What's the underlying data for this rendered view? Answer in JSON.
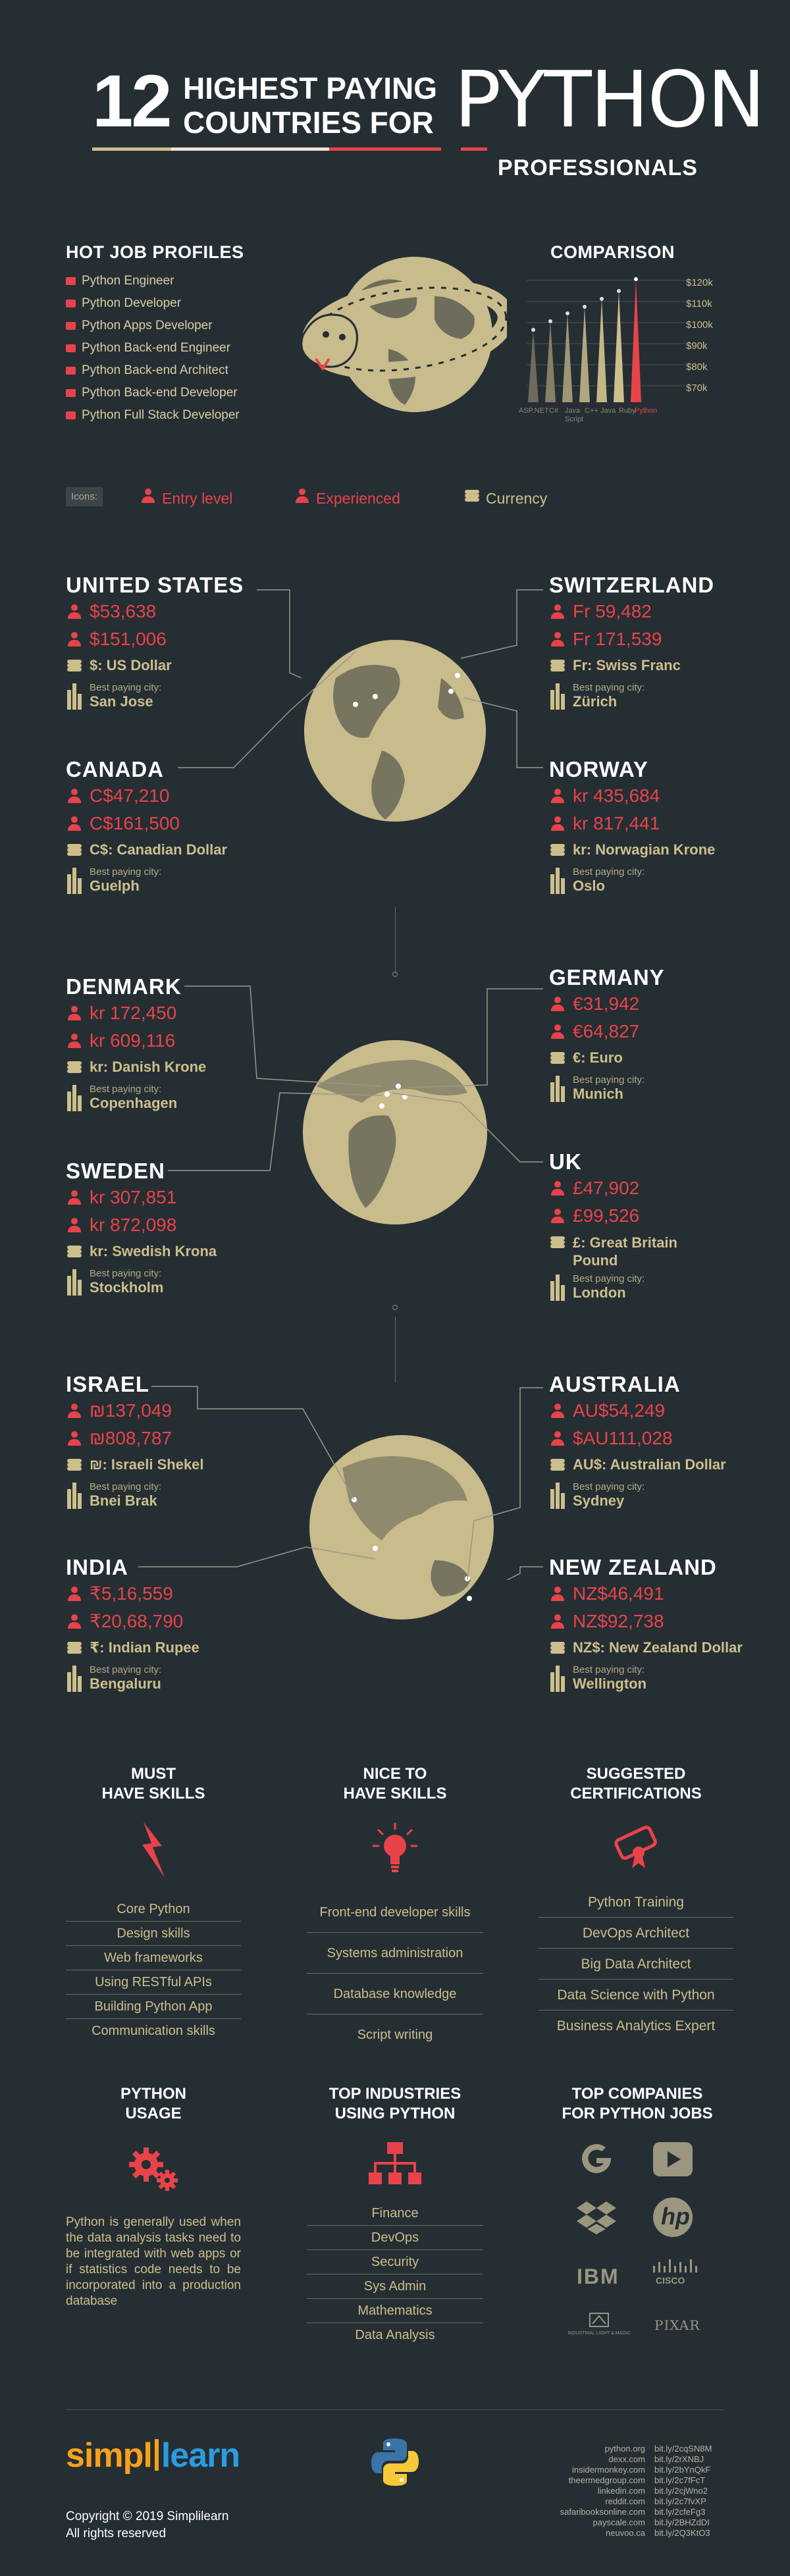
{
  "header": {
    "number": "12",
    "line1": "HIGHEST PAYING",
    "line2": "COUNTRIES FOR",
    "python": "PYTHON",
    "professionals": "PROFESSIONALS"
  },
  "hot_jobs": {
    "title": "HOT JOB PROFILES",
    "items": [
      "Python Engineer",
      "Python Developer",
      "Python Apps Developer",
      "Python Back-end Engineer",
      "Python Back-end Architect",
      "Python Back-end Developer",
      "Python Full Stack Developer"
    ]
  },
  "comparison": {
    "title": "COMPARISON",
    "ticks": [
      "$120k",
      "$110k",
      "$100k",
      "$90k",
      "$80k",
      "$70k"
    ],
    "languages": [
      "ASP.NET",
      "C#",
      "Java Script",
      "C++",
      "Java",
      "Ruby",
      "Python"
    ]
  },
  "icons_legend": {
    "label": "Icons:",
    "entry": "Entry level",
    "experienced": "Experienced",
    "currency": "Currency"
  },
  "best_paying_label": "Best paying city:",
  "countries": {
    "us": {
      "name": "UNITED STATES",
      "entry": "$53,638",
      "exp": "$151,006",
      "currency": "$: US Dollar",
      "city": "San Jose"
    },
    "ca": {
      "name": "CANADA",
      "entry": "C$47,210",
      "exp": "C$161,500",
      "currency": "C$: Canadian Dollar",
      "city": "Guelph"
    },
    "ch": {
      "name": "SWITZERLAND",
      "entry": "Fr 59,482",
      "exp": "Fr 171,539",
      "currency": "Fr: Swiss Franc",
      "city": "Zürich"
    },
    "no": {
      "name": "NORWAY",
      "entry": "kr 435,684",
      "exp": "kr 817,441",
      "currency": "kr: Norwagian Krone",
      "city": "Oslo"
    },
    "dk": {
      "name": "DENMARK",
      "entry": "kr 172,450",
      "exp": "kr 609,116",
      "currency": "kr: Danish Krone",
      "city": "Copenhagen"
    },
    "se": {
      "name": "SWEDEN",
      "entry": "kr 307,851",
      "exp": "kr 872,098",
      "currency": "kr: Swedish Krona",
      "city": "Stockholm"
    },
    "de": {
      "name": "GERMANY",
      "entry": "€31,942",
      "exp": "€64,827",
      "currency": "€: Euro",
      "city": "Munich"
    },
    "uk": {
      "name": "UK",
      "entry": "£47,902",
      "exp": "£99,526",
      "currency": "£: Great Britain Pound",
      "city": "London"
    },
    "il": {
      "name": "ISRAEL",
      "entry": "₪137,049",
      "exp": "₪808,787",
      "currency": "₪: Israeli Shekel",
      "city": "Bnei Brak"
    },
    "in": {
      "name": "INDIA",
      "entry": "₹5,16,559",
      "exp": "₹20,68,790",
      "currency": "₹: Indian Rupee",
      "city": "Bengaluru"
    },
    "au": {
      "name": "AUSTRALIA",
      "entry": "AU$54,249",
      "exp": "$AU111,028",
      "currency": "AU$: Australian Dollar",
      "city": "Sydney"
    },
    "nz": {
      "name": "NEW ZEALAND",
      "entry": "NZ$46,491",
      "exp": "NZ$92,738",
      "currency": "NZ$: New Zealand Dollar",
      "city": "Wellington"
    }
  },
  "must_have": {
    "title1": "MUST",
    "title2": "HAVE SKILLS",
    "items": [
      "Core Python",
      "Design skills",
      "Web frameworks",
      "Using RESTful APIs",
      "Building Python App",
      "Communication skills"
    ]
  },
  "nice_to_have": {
    "title1": "NICE TO",
    "title2": "HAVE SKILLS",
    "items": [
      "Front-end developer skills",
      "Systems administration",
      "Database knowledge",
      "Script writing"
    ]
  },
  "certifications": {
    "title1": "SUGGESTED",
    "title2": "CERTIFICATIONS",
    "items": [
      "Python Training",
      "DevOps Architect",
      "Big Data Architect",
      "Data Science with Python",
      "Business Analytics Expert"
    ]
  },
  "usage": {
    "title1": "PYTHON",
    "title2": "USAGE",
    "text": "Python is generally used when the data analysis tasks need to be integrated with web apps or if statistics code needs to be incorporated into a production database"
  },
  "industries": {
    "title1": "TOP INDUSTRIES",
    "title2": "USING PYTHON",
    "items": [
      "Finance",
      "DevOps",
      "Security",
      "Sys Admin",
      "Mathematics",
      "Data Analysis"
    ]
  },
  "companies": {
    "title1": "TOP COMPANIES",
    "title2": "FOR PYTHON JOBS",
    "ibm": "IBM",
    "cisco": "CISCO",
    "ilm": "INDUSTRIAL LIGHT & MAGIC",
    "pixar": "PIXAR",
    "hp": "hp"
  },
  "footer": {
    "brand_a": "simpl",
    "brand_b": "learn",
    "copyright": "Copyright  © 2019 Simplilearn",
    "rights": "All rights reserved",
    "refs": [
      [
        "python.org",
        "bit.ly/2cqSN8M"
      ],
      [
        "dexx.com",
        "bit.ly/2rXNBJ"
      ],
      [
        "insidermonkey.com",
        "bit.ly/2bYnQkF"
      ],
      [
        "theermedgroup.com",
        "bit.ly/2c7fFcT"
      ],
      [
        "linkedin.com",
        "bit.ly/2cjWno2"
      ],
      [
        "reddit.com",
        "bit.ly/2c7fvXP"
      ],
      [
        "safaribooksonline.com",
        "bit.ly/2cfeFg3"
      ],
      [
        "payscale.com",
        "bit.ly/2BHZdDI"
      ],
      [
        "neuvoo.ca",
        "bit.ly/2Q3KtO3"
      ]
    ]
  },
  "colors": {
    "background": "#252e33",
    "accent_red": "#e8434a",
    "tan": "#cdbf8c",
    "globe": "#c8bb8c"
  }
}
